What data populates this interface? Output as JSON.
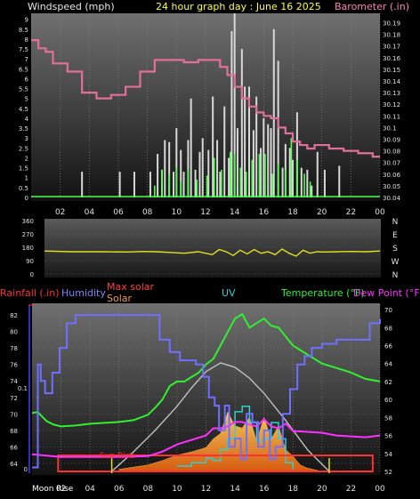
{
  "header": {
    "left": "Windspeed (mph)",
    "center": "24 hour graph day : June 16 2025",
    "right": "Barometer (.in)"
  },
  "colors": {
    "wind_gust": "#d8d8d8",
    "wind_avg": "#4dff4d",
    "barometer": "#e0709a",
    "direction": "#e0e020",
    "rain": "#ff3030",
    "humidity": "#7070ff",
    "max_solar": "#c0c0c0",
    "solar": "#f0a040",
    "uv": "#30d0d0",
    "temperature": "#30f030",
    "dew_point": "#ff30ff",
    "panel_top": "#6e6e6e",
    "panel_bottom": "#141414"
  },
  "chart_data": [
    {
      "type": "line",
      "name": "wind-barometer",
      "x_ticks": [
        "02",
        "04",
        "06",
        "08",
        "10",
        "12",
        "14",
        "16",
        "18",
        "20",
        "22",
        "00"
      ],
      "y_left_ticks": [
        "0",
        "0.5",
        "1",
        "1.5",
        "2",
        "2.5",
        "3",
        "3.5",
        "4",
        "4.5",
        "5",
        "5.5",
        "6",
        "6.5",
        "7",
        "7.5",
        "8",
        "8.5",
        "9"
      ],
      "y_right_ticks": [
        "30.04",
        "30.05",
        "30.06",
        "30.07",
        "30.08",
        "30.09",
        "30.1",
        "30.11",
        "30.12",
        "30.13",
        "30.14",
        "30.15",
        "30.16",
        "30.17",
        "30.18",
        "30.19"
      ],
      "ylim_left": [
        0,
        9.3
      ],
      "ylim_right": [
        30.04,
        30.198
      ],
      "series": [
        {
          "name": "Windspeed",
          "x": [
            0,
            3.5,
            6.1,
            7.1,
            8.2,
            8.7,
            9.0,
            9.2,
            9.5,
            9.8,
            10.0,
            10.3,
            10.5,
            10.8,
            11.0,
            11.3,
            11.6,
            11.8,
            12.2,
            12.5,
            12.8,
            13.0,
            13.3,
            13.6,
            13.8,
            14.0,
            14.2,
            14.5,
            14.7,
            15.0,
            15.3,
            15.5,
            15.8,
            16.0,
            16.3,
            16.5,
            16.7,
            17.0,
            17.3,
            17.5,
            17.8,
            18.0,
            18.3,
            18.6,
            19.0,
            19.3,
            19.7,
            20.2,
            21.2
          ],
          "values": [
            0,
            1.3,
            1.3,
            1.3,
            1.3,
            2.2,
            1.4,
            2.9,
            2.8,
            1.3,
            3.5,
            2.4,
            1.3,
            2.9,
            5.0,
            1.4,
            2.3,
            3.0,
            2.4,
            5.1,
            2.9,
            1.3,
            4.6,
            2.0,
            8.4,
            9.3,
            3.5,
            7.5,
            5.6,
            5.6,
            3.4,
            5.1,
            2.5,
            4.0,
            3.7,
            3.5,
            8.5,
            6.9,
            1.5,
            2.7,
            2.5,
            1.9,
            4.3,
            1.5,
            1.4,
            0.6,
            2.3,
            1.4,
            1.6
          ]
        },
        {
          "name": "Wind average",
          "x": [
            8.5,
            9.0,
            9.5,
            10.0,
            10.3,
            10.8,
            11.4,
            12.1,
            12.6,
            13.1,
            13.7,
            14.0,
            14.4,
            14.8,
            15.2,
            15.7,
            16.1,
            16.6,
            17.0,
            17.5,
            17.9,
            18.3,
            18.8,
            19.2
          ],
          "values": [
            0.6,
            1.4,
            1.2,
            1.5,
            0.8,
            1.4,
            0.9,
            1.1,
            2.0,
            1.4,
            2.3,
            2.2,
            1.5,
            1.3,
            1.9,
            2.2,
            2.2,
            1.2,
            1.7,
            1.4,
            3.0,
            1.9,
            1.2,
            0.8
          ]
        },
        {
          "name": "Barometer",
          "axis": "right",
          "x": [
            0,
            0.5,
            1.0,
            1.5,
            2.5,
            3.5,
            4.5,
            5.5,
            6.5,
            7.5,
            8.5,
            9.5,
            10.5,
            11.5,
            12.5,
            13.0,
            13.5,
            14.0,
            14.5,
            15.0,
            15.5,
            16.0,
            16.5,
            17.0,
            17.5,
            18.0,
            18.5,
            19.0,
            19.5,
            20.5,
            21.5,
            22.5,
            23.5,
            24.0
          ],
          "values": [
            30.175,
            30.168,
            30.165,
            30.155,
            30.148,
            30.13,
            30.125,
            30.128,
            30.135,
            30.148,
            30.158,
            30.158,
            30.156,
            30.158,
            30.158,
            30.152,
            30.145,
            30.135,
            30.125,
            30.118,
            30.113,
            30.11,
            30.108,
            30.1,
            30.095,
            30.088,
            30.085,
            30.082,
            30.085,
            30.082,
            30.08,
            30.078,
            30.075,
            30.075
          ]
        }
      ]
    },
    {
      "type": "line",
      "name": "wind-direction",
      "y_ticks": [
        "0",
        "90",
        "180",
        "270",
        "360"
      ],
      "y_right_labels": [
        "N",
        "W",
        "S",
        "E",
        "N"
      ],
      "ylim": [
        0,
        360
      ],
      "series": [
        {
          "name": "Wind direction",
          "x": [
            0,
            2,
            4,
            6,
            7,
            8,
            9,
            10,
            11,
            12,
            12.5,
            13,
            13.5,
            14,
            14.5,
            15,
            15.5,
            16,
            16.5,
            17,
            17.5,
            18,
            18.5,
            19,
            19.5,
            20,
            21,
            22,
            23,
            24
          ],
          "values": [
            155,
            150,
            150,
            148,
            152,
            150,
            145,
            140,
            150,
            130,
            165,
            150,
            125,
            160,
            135,
            165,
            140,
            150,
            130,
            168,
            140,
            120,
            160,
            140,
            150,
            148,
            150,
            152,
            150,
            155
          ]
        }
      ]
    },
    {
      "type": "line",
      "name": "humidity-temperature-solar",
      "labels": {
        "rainfall": "Rainfall (.in)",
        "humidity": "Humidity",
        "max_solar": "Max solar",
        "solar": "Solar",
        "uv": "UV",
        "temperature": "Temperature (°F)",
        "dew_point": "Dew Point (°F)"
      },
      "events": {
        "sun_rise": "Sun Rise",
        "moon_rise": "Moon Rise"
      },
      "y_left_ticks": [
        "64",
        "66",
        "68",
        "70",
        "72",
        "74",
        "76",
        "78",
        "80",
        "82"
      ],
      "y_right_ticks": [
        "52",
        "54",
        "56",
        "58",
        "60",
        "62",
        "64",
        "66",
        "68",
        "70"
      ],
      "rain_ticks": [
        "0",
        "0.1"
      ],
      "ylim_left": [
        62.8,
        83.2
      ],
      "ylim_right": [
        51.8,
        70.5
      ],
      "series": [
        {
          "name": "Humidity",
          "x": [
            0,
            0.4,
            0.6,
            0.9,
            1.4,
            1.9,
            2.4,
            3,
            5,
            7,
            8.3,
            8.8,
            9.5,
            10.2,
            10.8,
            11.3,
            11.8,
            12.2,
            12.6,
            12.9,
            13.3,
            13.6,
            14.0,
            14.4,
            14.8,
            15.2,
            15.6,
            16.0,
            16.4,
            16.8,
            17.3,
            17.8,
            18.3,
            18.8,
            19.3,
            20,
            21,
            22,
            23,
            23.3,
            24
          ],
          "values": [
            63.5,
            76,
            74,
            72.5,
            75,
            78,
            81,
            82,
            82,
            82,
            82,
            79,
            77.5,
            76.5,
            76.5,
            76,
            74.5,
            72,
            71,
            68,
            71,
            66,
            67,
            64.5,
            70,
            69,
            66,
            68,
            64.5,
            66,
            70,
            73,
            76,
            77,
            78,
            78.5,
            79,
            79,
            79,
            81,
            81.5
          ]
        },
        {
          "name": "Temperature",
          "x": [
            0,
            0.4,
            1,
            1.5,
            2,
            3,
            4,
            5,
            6,
            7,
            8,
            8.5,
            9,
            9.5,
            10,
            10.5,
            11,
            11.5,
            12,
            12.5,
            13,
            13.5,
            14,
            14.5,
            15,
            15.5,
            16,
            16.5,
            17,
            17.5,
            18,
            19,
            20,
            21,
            22,
            23,
            24
          ],
          "values": [
            58.5,
            58.6,
            57.6,
            57.2,
            57,
            57.1,
            57.3,
            57.4,
            57.5,
            57.7,
            58.3,
            59.1,
            60,
            61.5,
            62,
            62,
            62.5,
            63,
            63.9,
            64.5,
            66,
            67.5,
            69,
            69.5,
            68,
            68.5,
            69,
            68.2,
            68,
            67,
            66,
            65,
            64,
            63.5,
            63,
            62.3,
            62
          ]
        },
        {
          "name": "Dew Point",
          "x": [
            0,
            2,
            4,
            6,
            8,
            9,
            10,
            11,
            12,
            12.5,
            13,
            13.5,
            14,
            14.5,
            15,
            15.5,
            16,
            16.5,
            17,
            17.5,
            18,
            19,
            20,
            21,
            22,
            23,
            24
          ],
          "values": [
            53.9,
            53.6,
            53.6,
            53.6,
            53.7,
            54.2,
            55,
            55.5,
            56,
            56.8,
            56.8,
            57,
            57.5,
            57.5,
            57.2,
            57,
            57.8,
            57,
            56.8,
            57.3,
            56.5,
            56.4,
            56.3,
            56,
            55.9,
            55.8,
            56
          ]
        },
        {
          "name": "Max solar",
          "x": [
            5.5,
            7,
            8.5,
            10,
            11,
            12,
            13,
            14,
            15,
            16,
            17.5,
            19,
            20.5
          ],
          "values": [
            0,
            0.18,
            0.38,
            0.6,
            0.77,
            0.92,
            1.0,
            0.96,
            0.86,
            0.72,
            0.47,
            0.2,
            0
          ],
          "unit": "relative"
        },
        {
          "name": "Solar",
          "x": [
            6,
            8,
            9,
            10,
            11,
            12,
            12.5,
            13,
            13.5,
            14,
            14.5,
            15,
            15.5,
            16,
            16.5,
            17,
            17.5,
            18,
            18.5,
            19,
            20
          ],
          "values": [
            0.02,
            0.06,
            0.1,
            0.15,
            0.18,
            0.22,
            0.3,
            0.35,
            0.55,
            0.42,
            0.4,
            0.5,
            0.28,
            0.5,
            0.3,
            0.42,
            0.2,
            0.14,
            0.06,
            0.03,
            0
          ],
          "unit": "relative"
        },
        {
          "name": "UV",
          "x": [
            10,
            11,
            12,
            12.5,
            13,
            13.5,
            14,
            14.5,
            15,
            15.5,
            16,
            16.5,
            17,
            17.5,
            18
          ],
          "values": [
            0.05,
            0.08,
            0.12,
            0.1,
            0.2,
            0.3,
            0.55,
            0.6,
            0.45,
            0.28,
            0.3,
            0.45,
            0.3,
            0.08,
            0.02
          ],
          "unit": "relative"
        }
      ]
    }
  ]
}
